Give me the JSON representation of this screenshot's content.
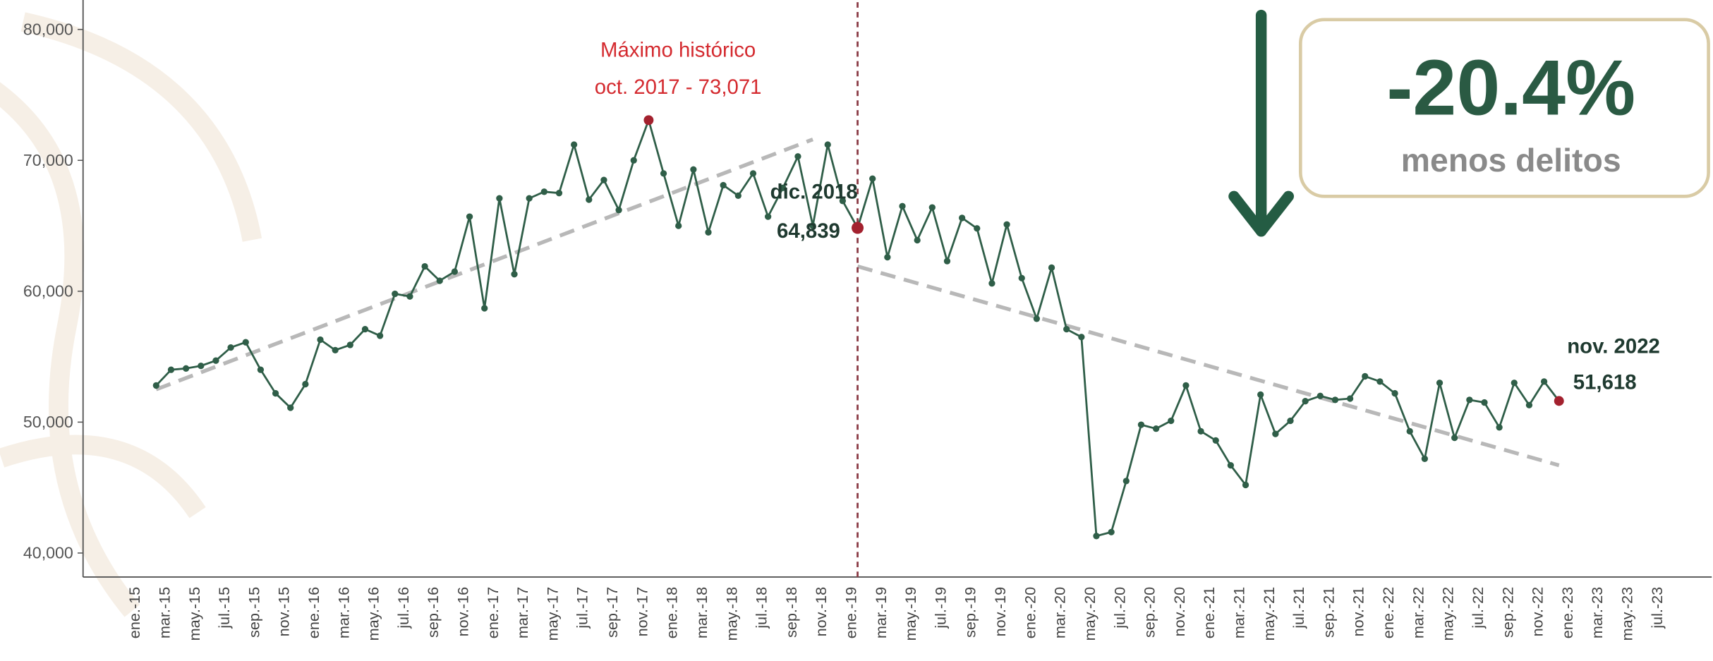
{
  "chart_data": {
    "type": "line",
    "categories": [
      "ene.-15",
      null,
      "mar.-15",
      null,
      "may.-15",
      null,
      "jul.-15",
      null,
      "sep.-15",
      null,
      "nov.-15",
      null,
      "ene.-16",
      null,
      "mar.-16",
      null,
      "may.-16",
      null,
      "jul.-16",
      null,
      "sep.-16",
      null,
      "nov.-16",
      null,
      "ene.-17",
      null,
      "mar.-17",
      null,
      "may.-17",
      null,
      "jul.-17",
      null,
      "sep.-17",
      null,
      "nov.-17",
      null,
      "ene.-18",
      null,
      "mar.-18",
      null,
      "may.-18",
      null,
      "jul.-18",
      null,
      "sep.-18",
      null,
      "nov.-18",
      null,
      "ene.-19",
      null,
      "mar.-19",
      null,
      "may.-19",
      null,
      "jul.-19",
      null,
      "sep.-19",
      null,
      "nov.-19",
      null,
      "ene.-20",
      null,
      "mar.-20",
      null,
      "may.-20",
      null,
      "jul.-20",
      null,
      "sep.-20",
      null,
      "nov.-20",
      null,
      "ene.-21",
      null,
      "mar.-21",
      null,
      "may.-21",
      null,
      "jul.-21",
      null,
      "sep.-21",
      null,
      "nov.-21",
      null,
      "ene.-22",
      null,
      "mar.-22",
      null,
      "may.-22",
      null,
      "jul.-22",
      null,
      "sep.-22",
      null,
      "nov.-22",
      null,
      "ene.-23",
      null,
      "mar.-23",
      null,
      "may.-23",
      null,
      "jul.-23"
    ],
    "series": [
      {
        "color": "#2f5e48",
        "values": [
          52800,
          54000,
          54100,
          54300,
          54700,
          55700,
          56100,
          54000,
          52200,
          51100,
          52900,
          56300,
          55500,
          55900,
          57100,
          56600,
          59800,
          59600,
          61900,
          60800,
          61500,
          65700,
          58700,
          67100,
          61300,
          67100,
          67600,
          67500,
          71200,
          67000,
          68500,
          66200,
          70000,
          73071,
          69000,
          65000,
          69300,
          64500,
          68100,
          67300,
          69000,
          65700,
          67900,
          70300,
          65000,
          71200,
          66900,
          64839,
          68600,
          62600,
          66500,
          63900,
          66400,
          62300,
          65600,
          64800,
          60600,
          65100,
          61000,
          57900,
          61800,
          57100,
          56500,
          41300,
          41600,
          45500,
          49800,
          49500,
          50100,
          52800,
          49300,
          48600,
          46700,
          45200,
          52100,
          49100,
          50100,
          51600,
          52000,
          51700,
          51800,
          53500,
          53100,
          52200,
          49300,
          47200,
          53000,
          48800,
          51700,
          51500,
          49600,
          53000,
          51300,
          53100,
          51618,
          null,
          null,
          null,
          null,
          null,
          null,
          null,
          null
        ]
      }
    ],
    "ylim": [
      38250,
      82250
    ],
    "yticks": [
      {
        "value": 40000,
        "label": "40,000"
      },
      {
        "value": 50000,
        "label": "50,000"
      },
      {
        "value": 60000,
        "label": "60,000"
      },
      {
        "value": 70000,
        "label": "70,000"
      },
      {
        "value": 80000,
        "label": "80,000"
      }
    ],
    "highlight_color": "#a3212e",
    "annotations": [
      {
        "index": 33,
        "color": "#d42a2f",
        "lines": [
          "Máximo histórico",
          "oct. 2017 - 73,071"
        ]
      },
      {
        "index": 47,
        "color": "#1f3a30",
        "lines": [
          "dic. 2018",
          "64,839"
        ]
      },
      {
        "index": 94,
        "color": "#1f3a30",
        "lines": [
          "nov. 2022",
          "51,618"
        ]
      }
    ],
    "divider_index": 47,
    "trends": [
      {
        "x": [
          0,
          44
        ],
        "values": [
          52500,
          71600
        ]
      },
      {
        "x": [
          47,
          94
        ],
        "values": [
          61900,
          46700
        ]
      }
    ],
    "trend_color": "#b8b8b8",
    "callout": {
      "value": "-20.4%",
      "text": "menos delitos"
    }
  }
}
